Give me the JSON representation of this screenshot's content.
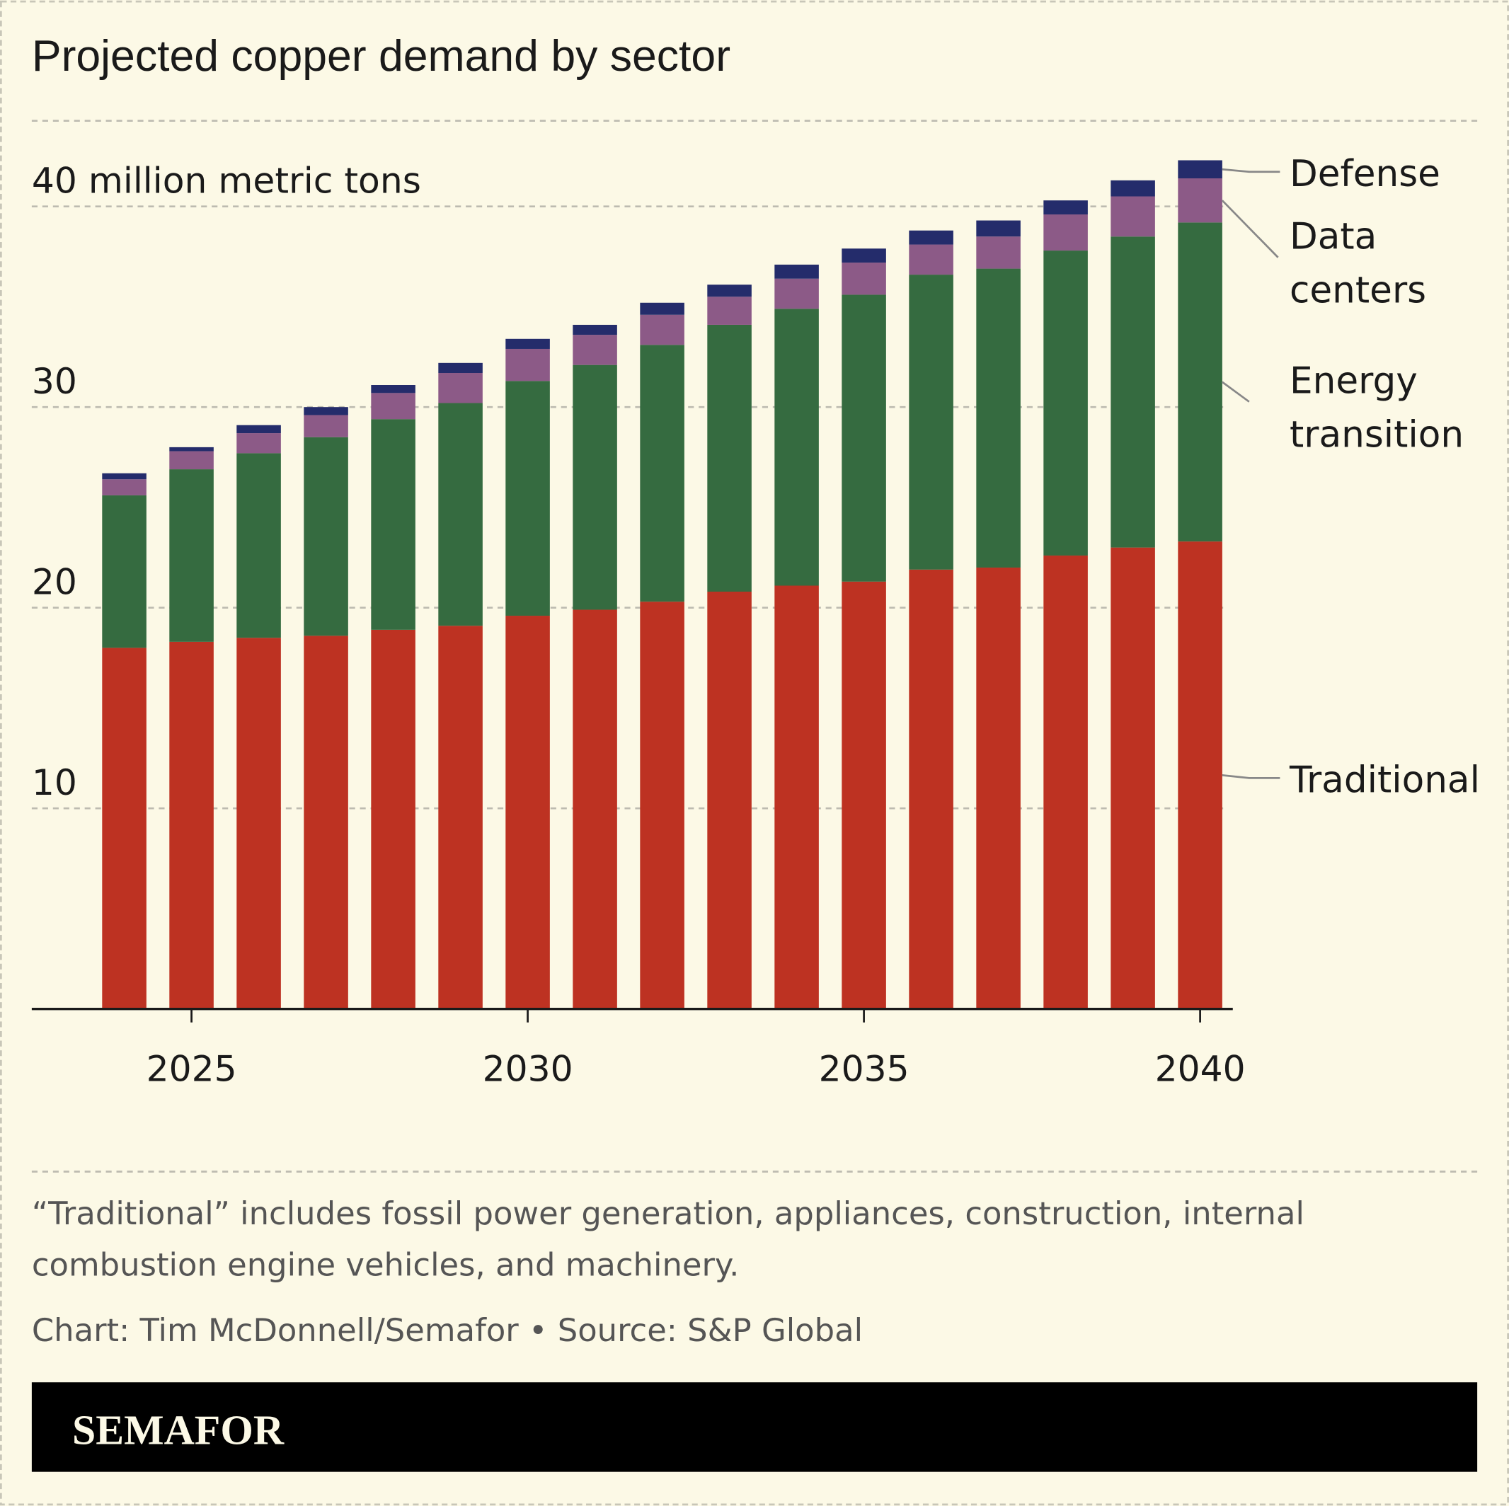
{
  "title": "Projected copper demand by sector",
  "chart_data": {
    "type": "bar",
    "stacked": true,
    "title": "Projected copper demand by sector",
    "ylabel": "40 million metric tons",
    "ylim": [
      0,
      42
    ],
    "yticks": [
      10,
      20,
      30,
      40
    ],
    "ytick_labels": [
      "10",
      "20",
      "30",
      "40 million metric tons"
    ],
    "xticks": [
      "2025",
      "2030",
      "2035",
      "2040"
    ],
    "categories": [
      2024,
      2025,
      2026,
      2027,
      2028,
      2029,
      2030,
      2031,
      2032,
      2033,
      2034,
      2035,
      2036,
      2037,
      2038,
      2039,
      2040
    ],
    "series": [
      {
        "name": "Traditional",
        "color": "#bd3222",
        "values": [
          18.0,
          18.3,
          18.5,
          18.6,
          18.9,
          19.1,
          19.6,
          19.9,
          20.3,
          20.8,
          21.1,
          21.3,
          21.9,
          22.0,
          22.6,
          23.0,
          23.3
        ]
      },
      {
        "name": "Energy transition",
        "color": "#356b40",
        "values": [
          7.6,
          8.6,
          9.2,
          9.9,
          10.5,
          11.1,
          11.7,
          12.2,
          12.8,
          13.3,
          13.8,
          14.3,
          14.7,
          14.9,
          15.2,
          15.5,
          15.9
        ]
      },
      {
        "name": "Data centers",
        "color": "#8c5a87",
        "values": [
          0.8,
          0.9,
          1.0,
          1.1,
          1.3,
          1.5,
          1.6,
          1.5,
          1.5,
          1.4,
          1.5,
          1.6,
          1.5,
          1.6,
          1.8,
          2.0,
          2.2
        ]
      },
      {
        "name": "Defense",
        "color": "#242c6b",
        "values": [
          0.3,
          0.2,
          0.4,
          0.4,
          0.4,
          0.5,
          0.5,
          0.5,
          0.6,
          0.6,
          0.7,
          0.7,
          0.7,
          0.8,
          0.7,
          0.8,
          0.9
        ]
      }
    ],
    "legend": {
      "placement": "right",
      "labels": [
        [
          "Defense"
        ],
        [
          "Data",
          "centers"
        ],
        [
          "Energy",
          "transition"
        ],
        [
          "Traditional"
        ]
      ]
    },
    "grid": true
  },
  "footer": {
    "note_line1": "“Traditional” includes fossil power generation, appliances, construction, internal",
    "note_line2": "combustion engine vehicles, and machinery.",
    "credit": "Chart: Tim McDonnell/Semafor • Source: S&P Global",
    "brand": "SEMAFOR"
  }
}
